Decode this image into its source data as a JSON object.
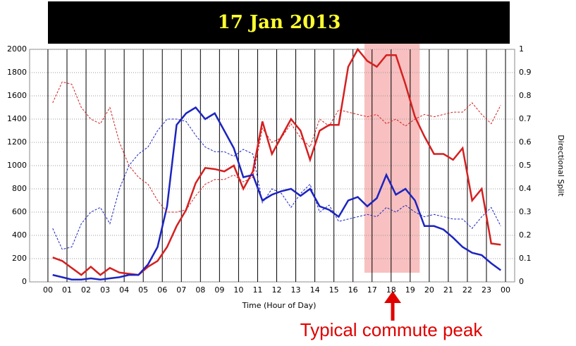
{
  "chart_data": {
    "type": "line",
    "title": "17 Jan 2013",
    "xlabel": "Time (Hour of Day)",
    "y2label": "Directional Split",
    "annotation": "Typical commute peak",
    "highlight": [
      16.6,
      19.5
    ],
    "highlight_color": "#f8c0c0",
    "x": [
      0.25,
      0.75,
      1.25,
      1.75,
      2.25,
      2.75,
      3.25,
      3.75,
      4.25,
      4.75,
      5.25,
      5.75,
      6.25,
      6.75,
      7.25,
      7.75,
      8.25,
      8.75,
      9.25,
      9.75,
      10.25,
      10.75,
      11.25,
      11.75,
      12.25,
      12.75,
      13.25,
      13.75,
      14.25,
      14.75,
      15.25,
      15.75,
      16.25,
      16.75,
      17.25,
      17.75,
      18.25,
      18.75,
      19.25,
      19.75,
      20.25,
      20.75,
      21.25,
      21.75,
      22.25,
      22.75,
      23.25,
      23.75
    ],
    "series": [
      {
        "color": "#d42020",
        "dash": false,
        "axis": "y",
        "values": [
          210,
          180,
          120,
          60,
          130,
          60,
          120,
          80,
          70,
          60,
          130,
          180,
          300,
          480,
          620,
          850,
          980,
          970,
          950,
          1000,
          800,
          950,
          1380,
          1100,
          1250,
          1400,
          1300,
          1050,
          1300,
          1350,
          1350,
          1850,
          2000,
          1900,
          1850,
          1950,
          1950,
          1700,
          1420,
          1250,
          1100,
          1100,
          1050,
          1150,
          700,
          800,
          330,
          320
        ]
      },
      {
        "color": "#1c24c0",
        "dash": false,
        "axis": "y",
        "values": [
          60,
          40,
          20,
          20,
          30,
          20,
          30,
          40,
          60,
          60,
          150,
          300,
          650,
          1350,
          1450,
          1500,
          1400,
          1450,
          1300,
          1150,
          900,
          920,
          700,
          750,
          780,
          800,
          740,
          800,
          650,
          620,
          560,
          700,
          730,
          650,
          720,
          920,
          750,
          800,
          700,
          480,
          480,
          450,
          380,
          300,
          250,
          230,
          160,
          100
        ]
      },
      {
        "color": "#d42020",
        "dash": true,
        "axis": "y2",
        "values": [
          0.77,
          0.86,
          0.85,
          0.75,
          0.7,
          0.68,
          0.75,
          0.6,
          0.5,
          0.45,
          0.42,
          0.35,
          0.3,
          0.3,
          0.31,
          0.37,
          0.42,
          0.44,
          0.44,
          0.46,
          0.43,
          0.45,
          0.66,
          0.6,
          0.62,
          0.68,
          0.62,
          0.58,
          0.7,
          0.67,
          0.74,
          0.73,
          0.72,
          0.71,
          0.72,
          0.68,
          0.7,
          0.67,
          0.7,
          0.72,
          0.71,
          0.72,
          0.73,
          0.73,
          0.77,
          0.72,
          0.68,
          0.76
        ]
      },
      {
        "color": "#1c24c0",
        "dash": true,
        "axis": "y2",
        "values": [
          0.23,
          0.14,
          0.15,
          0.25,
          0.3,
          0.32,
          0.25,
          0.4,
          0.5,
          0.55,
          0.58,
          0.65,
          0.7,
          0.7,
          0.69,
          0.63,
          0.58,
          0.56,
          0.56,
          0.54,
          0.57,
          0.55,
          0.34,
          0.4,
          0.38,
          0.32,
          0.38,
          0.42,
          0.3,
          0.33,
          0.26,
          0.27,
          0.28,
          0.29,
          0.28,
          0.32,
          0.3,
          0.33,
          0.3,
          0.28,
          0.29,
          0.28,
          0.27,
          0.27,
          0.23,
          0.28,
          0.32,
          0.24
        ]
      }
    ],
    "xlim": [
      -0.96,
      24.48
    ],
    "xticks": [
      {
        "value": 0,
        "label": "00"
      },
      {
        "value": 1,
        "label": "01"
      },
      {
        "value": 2,
        "label": "02"
      },
      {
        "value": 3,
        "label": "03"
      },
      {
        "value": 4,
        "label": "04"
      },
      {
        "value": 5,
        "label": "05"
      },
      {
        "value": 6,
        "label": "06"
      },
      {
        "value": 7,
        "label": "07"
      },
      {
        "value": 8,
        "label": "08"
      },
      {
        "value": 9,
        "label": "09"
      },
      10,
      11,
      12,
      13,
      14,
      15,
      16,
      17,
      18,
      19,
      20,
      21,
      22,
      23,
      {
        "value": 24,
        "label": "00"
      }
    ],
    "ylim": [
      0,
      2000
    ],
    "yticks": [
      0,
      200,
      400,
      600,
      800,
      1000,
      1200,
      1400,
      1600,
      1800,
      2000
    ],
    "y2lim": [
      0,
      1
    ],
    "y2ticks": [
      0,
      0.1,
      0.2,
      0.3,
      0.4,
      0.5,
      0.6,
      0.7,
      0.8,
      0.9,
      1
    ],
    "grid": true
  }
}
